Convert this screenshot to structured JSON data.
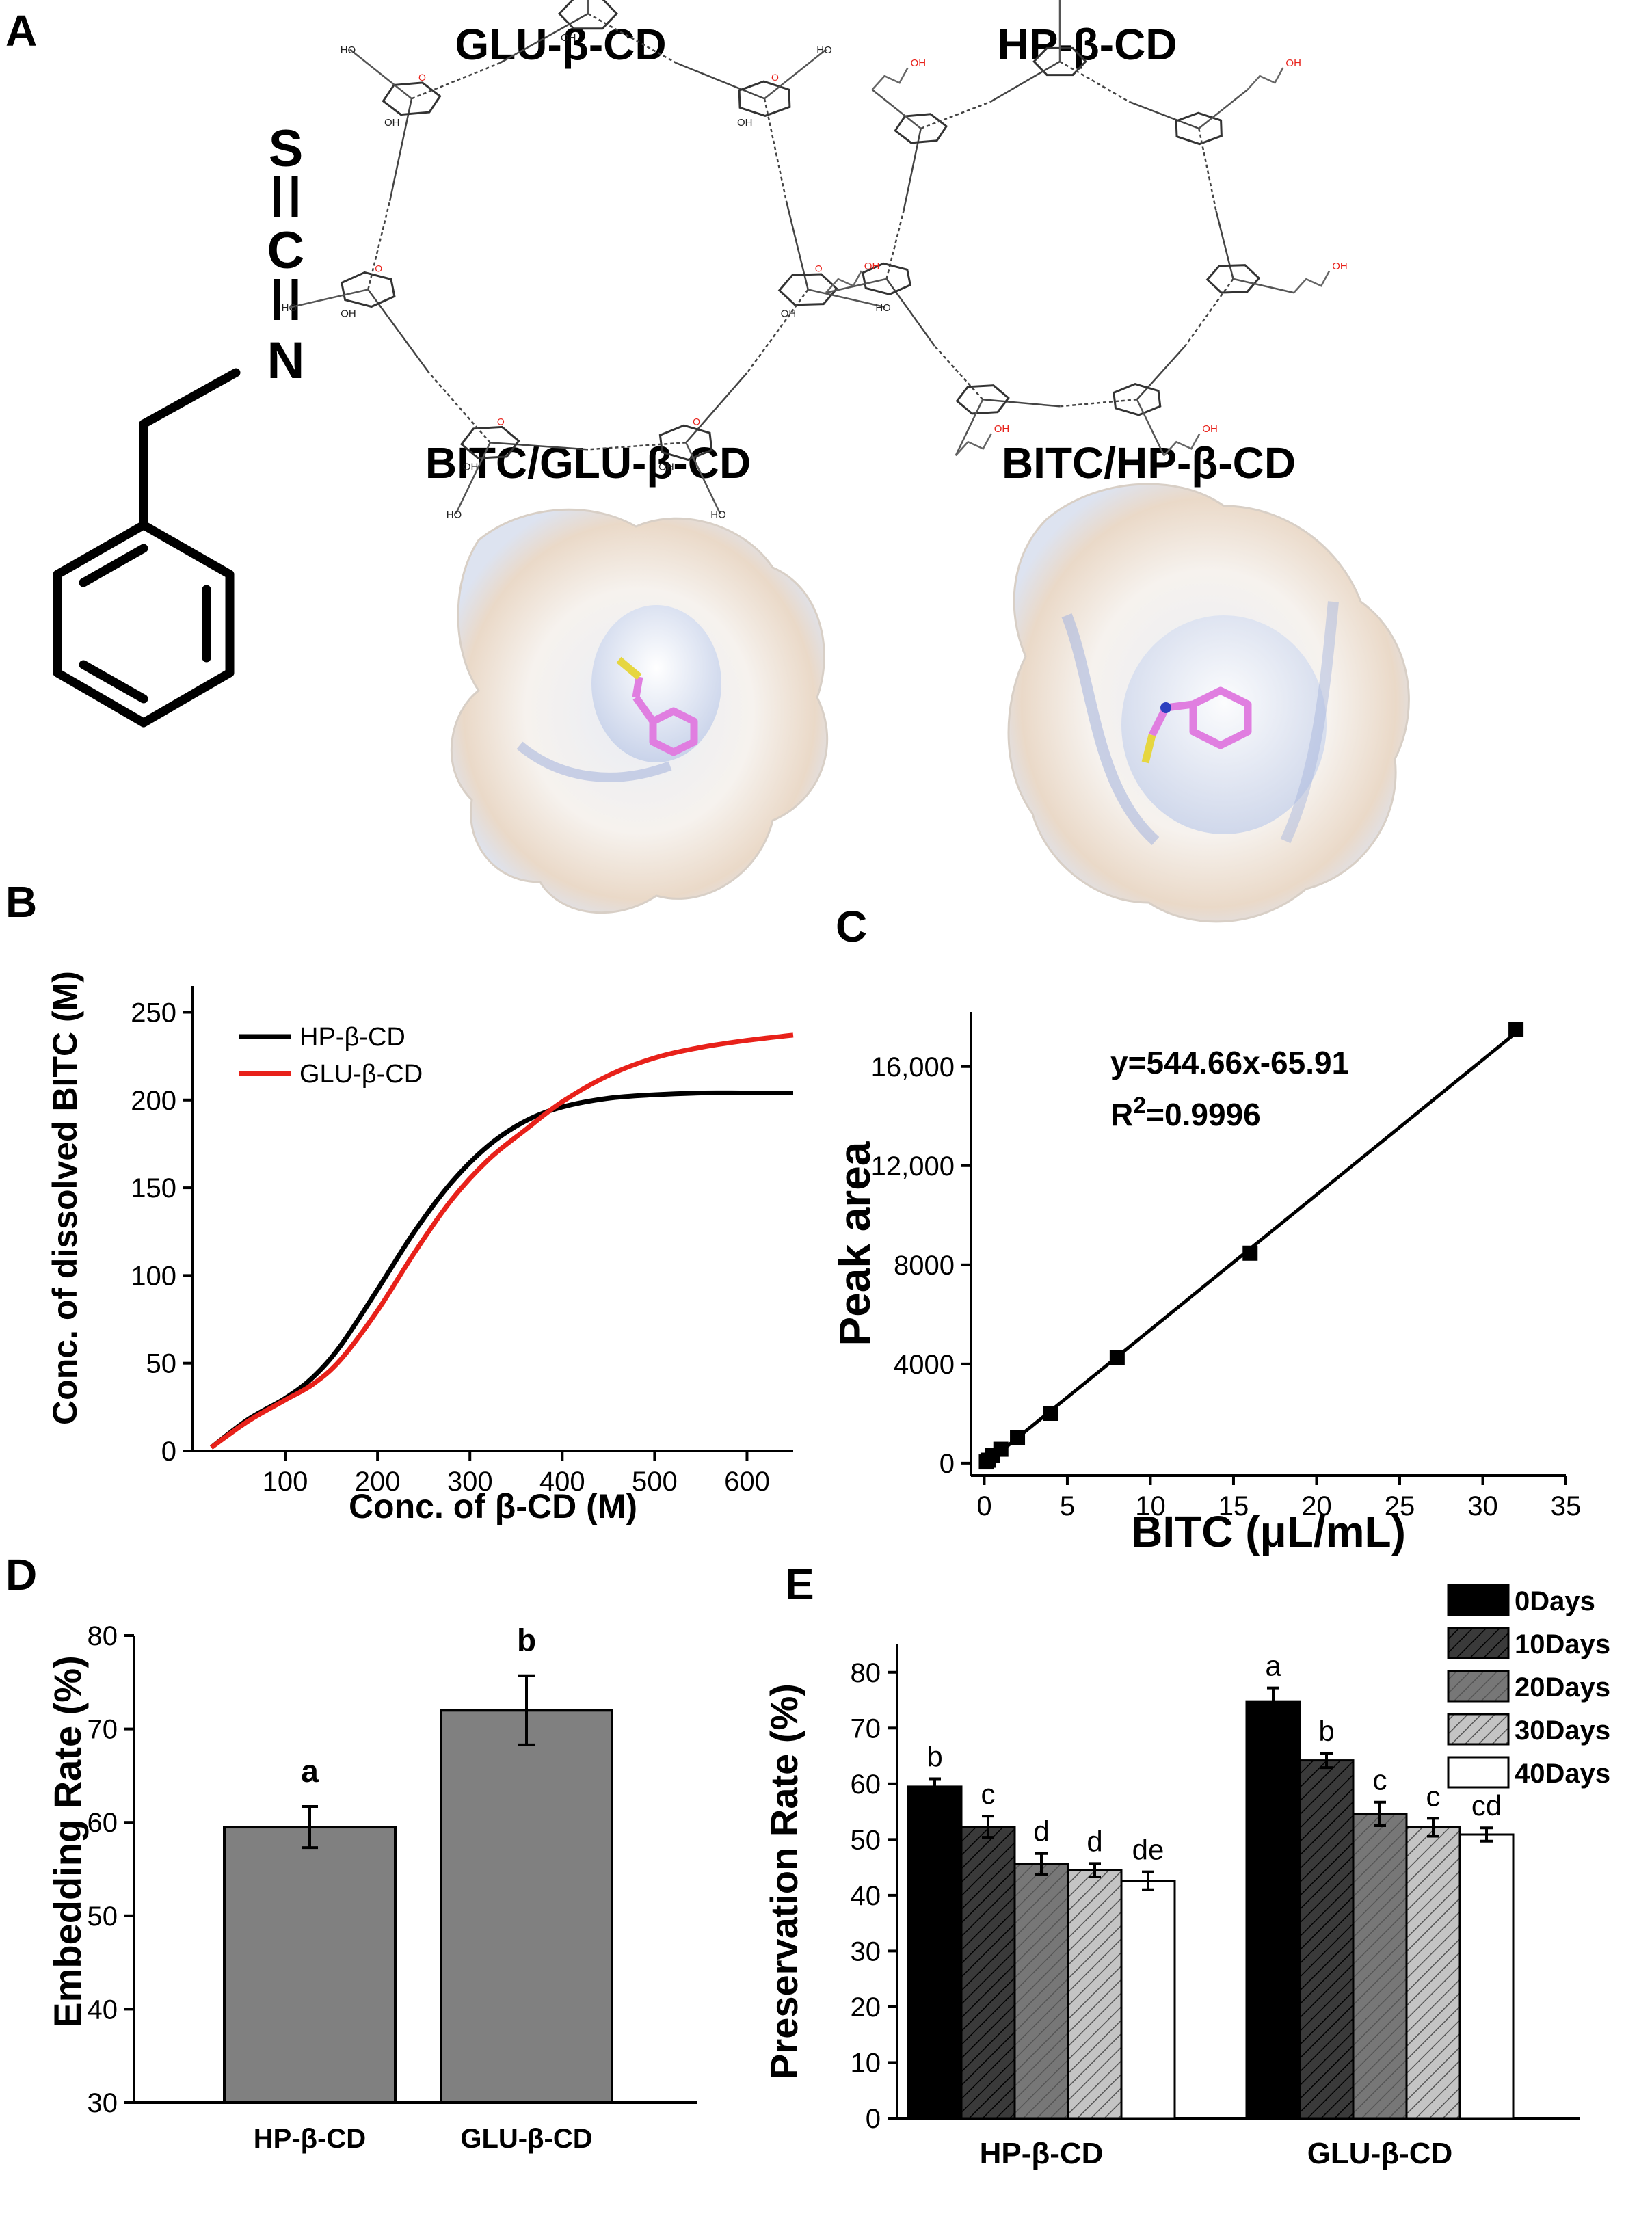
{
  "panels": {
    "A": "A",
    "B": "B",
    "C": "C",
    "D": "D",
    "E": "E"
  },
  "structures": {
    "bitc_atoms": [
      "S",
      "C",
      "N"
    ],
    "glu_title": "GLU-β-CD",
    "hp_title": "HP-β-CD",
    "complex_glu_title": "BITC/GLU-β-CD",
    "complex_hp_title": "BITC/HP-β-CD",
    "atom_label_ho": "HO",
    "atom_label_oh": "OH",
    "atom_label_o": "O"
  },
  "colors": {
    "black": "#000000",
    "red": "#e8211a",
    "gray_bar": "#808080",
    "ligand": "#e07ee0",
    "surface": "#f0ebe6"
  },
  "chart_data": [
    {
      "panel": "B",
      "type": "line",
      "xlabel": "Conc. of β-CD (M)",
      "ylabel": "Conc. of dissolved BITC (M)",
      "xlim": [
        0,
        650
      ],
      "ylim": [
        0,
        265
      ],
      "xticks": [
        100,
        200,
        300,
        400,
        500,
        600
      ],
      "yticks": [
        0,
        50,
        100,
        150,
        200,
        250
      ],
      "legend_position": "top-left",
      "series": [
        {
          "name": "HP-β-CD",
          "color": "#000000",
          "x": [
            20,
            60,
            100,
            130,
            160,
            200,
            240,
            280,
            320,
            360,
            400,
            450,
            500,
            550,
            600,
            650
          ],
          "y": [
            2,
            18,
            30,
            42,
            60,
            92,
            125,
            153,
            174,
            188,
            196,
            201,
            203,
            204,
            204,
            204
          ]
        },
        {
          "name": "GLU-β-CD",
          "color": "#e8211a",
          "x": [
            20,
            60,
            100,
            130,
            160,
            200,
            240,
            280,
            320,
            360,
            400,
            450,
            500,
            550,
            600,
            650
          ],
          "y": [
            2,
            17,
            29,
            38,
            52,
            80,
            113,
            143,
            166,
            183,
            199,
            214,
            224,
            230,
            234,
            237
          ]
        }
      ]
    },
    {
      "panel": "C",
      "type": "scatter",
      "xlabel": "BITC (μL/mL)",
      "ylabel": "Peak area",
      "xlim": [
        -0.8,
        35
      ],
      "ylim": [
        -500,
        18200
      ],
      "xticks": [
        0,
        5,
        10,
        15,
        20,
        25,
        30,
        35
      ],
      "yticks": [
        0,
        4000,
        8000,
        12000,
        16000
      ],
      "ytick_labels": [
        "0",
        "4000",
        "8000",
        "12,000",
        "16,000"
      ],
      "equation": "y=544.66x-65.91",
      "r2_prefix": "R",
      "r2_sup": "2",
      "r2_value": "=0.9996",
      "fit": {
        "slope": 544.66,
        "intercept": -65.91
      },
      "points": {
        "x": [
          0.125,
          0.25,
          0.5,
          1,
          2,
          4,
          8,
          16,
          32
        ],
        "y": [
          50,
          120,
          300,
          560,
          1030,
          2010,
          4260,
          8470,
          17500
        ]
      }
    },
    {
      "panel": "D",
      "type": "bar",
      "ylabel": "Embedding Rate (%)",
      "ylim": [
        30,
        80
      ],
      "yticks": [
        30,
        40,
        50,
        60,
        70,
        80
      ],
      "categories": [
        "HP-β-CD",
        "GLU-β-CD"
      ],
      "values": [
        59.5,
        72
      ],
      "errors": [
        2.2,
        3.7
      ],
      "letters": [
        "a",
        "b"
      ],
      "color": "#808080"
    },
    {
      "panel": "E",
      "type": "bar",
      "ylabel": "Preservation Rate (%)",
      "ylim": [
        0,
        85
      ],
      "yticks": [
        0,
        10,
        20,
        30,
        40,
        50,
        60,
        70,
        80
      ],
      "categories": [
        "HP-β-CD",
        "GLU-β-CD"
      ],
      "legend_position": "top-right",
      "series": [
        {
          "name": "0Days",
          "values": [
            59.5,
            74.8
          ],
          "errors": [
            1.4,
            2.4
          ],
          "letters": [
            "b",
            "a"
          ],
          "fill": "#000000",
          "pattern": "none"
        },
        {
          "name": "10Days",
          "values": [
            52.3,
            64.2
          ],
          "errors": [
            1.9,
            1.3
          ],
          "letters": [
            "c",
            "b"
          ],
          "fill": "#3a3a3a",
          "pattern": "hatch"
        },
        {
          "name": "20Days",
          "values": [
            45.6,
            54.6
          ],
          "errors": [
            1.9,
            2.1
          ],
          "letters": [
            "d",
            "c"
          ],
          "fill": "#777777",
          "pattern": "hatch"
        },
        {
          "name": "30Days",
          "values": [
            44.5,
            52.2
          ],
          "errors": [
            1.2,
            1.6
          ],
          "letters": [
            "d",
            "c"
          ],
          "fill": "#c4c4c4",
          "pattern": "hatch"
        },
        {
          "name": "40Days",
          "values": [
            42.6,
            50.9
          ],
          "errors": [
            1.6,
            1.2
          ],
          "letters": [
            "de",
            "cd"
          ],
          "fill": "#ffffff",
          "pattern": "none"
        }
      ]
    }
  ]
}
